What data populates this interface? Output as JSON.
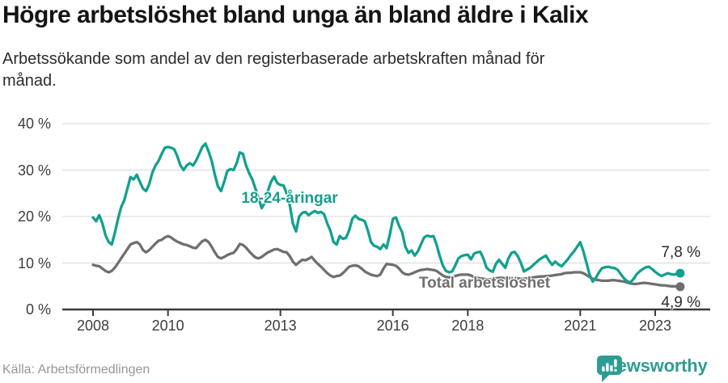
{
  "header": {
    "title": "Högre arbetslöshet bland unga än bland äldre i Kalix",
    "subtitle_lines": [
      "Arbetssökande som andel av den registerbaserade arbetskraften månad för",
      "månad."
    ]
  },
  "chart_data": {
    "type": "line",
    "unit": "%",
    "x_start_year": 2008,
    "x_frequency": "monthly",
    "x_last_point": "2023-09",
    "ylim": [
      0,
      40
    ],
    "ytick_values": [
      0,
      10,
      20,
      30,
      40
    ],
    "ytick_labels": [
      "0 %",
      "10 %",
      "20 %",
      "30 %",
      "40 %"
    ],
    "xticks": [
      2008,
      2010,
      2013,
      2016,
      2018,
      2021,
      2023
    ],
    "grid": "horizontal",
    "legend_position": "inline-labels",
    "series": [
      {
        "name": "18-24-åringar",
        "color": "#12a08e",
        "end_label": "7,8 %",
        "end_value": 7.8,
        "values": [
          19.8,
          19.0,
          20.3,
          18.5,
          16.0,
          14.5,
          14.0,
          16.5,
          19.5,
          22.0,
          23.5,
          26.0,
          28.5,
          28.0,
          29.0,
          27.5,
          26.0,
          25.5,
          27.0,
          29.5,
          31.0,
          32.0,
          33.5,
          34.8,
          35.0,
          34.8,
          34.5,
          33.0,
          31.0,
          30.0,
          31.0,
          31.5,
          31.0,
          32.0,
          33.5,
          35.0,
          35.7,
          34.0,
          32.0,
          29.0,
          26.5,
          25.5,
          27.5,
          29.8,
          30.2,
          30.0,
          31.5,
          33.8,
          33.5,
          31.0,
          29.3,
          28.0,
          26.0,
          24.0,
          21.8,
          23.0,
          25.5,
          27.5,
          28.6,
          27.2,
          26.8,
          26.7,
          25.0,
          22.5,
          18.5,
          16.8,
          20.0,
          20.8,
          21.0,
          20.3,
          20.8,
          21.2,
          20.8,
          21.0,
          20.5,
          18.5,
          17.0,
          14.5,
          14.0,
          15.8,
          15.2,
          15.4,
          17.0,
          19.5,
          20.2,
          19.5,
          19.3,
          19.0,
          17.0,
          14.5,
          13.7,
          13.5,
          13.0,
          14.0,
          13.2,
          16.0,
          19.5,
          19.8,
          18.0,
          16.6,
          13.5,
          12.2,
          12.7,
          11.6,
          12.5,
          14.0,
          15.5,
          15.9,
          15.7,
          15.8,
          14.0,
          11.5,
          9.5,
          8.3,
          8.0,
          8.2,
          9.5,
          11.0,
          11.5,
          11.7,
          11.8,
          10.8,
          12.0,
          12.3,
          12.4,
          11.0,
          9.0,
          8.4,
          8.1,
          9.8,
          10.7,
          9.8,
          9.0,
          11.0,
          12.2,
          12.4,
          11.5,
          10.0,
          8.2,
          8.6,
          9.0,
          9.6,
          10.2,
          10.8,
          11.2,
          11.6,
          10.5,
          9.6,
          10.3,
          9.7,
          9.3,
          10.0,
          10.8,
          11.7,
          12.5,
          13.5,
          14.5,
          12.5,
          10.0,
          7.5,
          6.0,
          6.8,
          8.0,
          8.9,
          9.1,
          9.2,
          9.0,
          8.9,
          8.5,
          7.6,
          6.7,
          6.1,
          5.8,
          6.5,
          7.5,
          8.2,
          8.7,
          9.1,
          9.2,
          8.7,
          8.1,
          7.6,
          7.2,
          7.5,
          7.8,
          7.6,
          7.5,
          7.7,
          7.8
        ]
      },
      {
        "name": "Total arbetslöshet",
        "color": "#6f6f6f",
        "end_label": "4,9 %",
        "end_value": 4.9,
        "values": [
          9.6,
          9.4,
          9.3,
          8.8,
          8.3,
          8.0,
          8.3,
          9.0,
          10.0,
          11.0,
          12.0,
          13.0,
          14.0,
          14.3,
          14.5,
          14.0,
          12.8,
          12.3,
          12.8,
          13.5,
          14.2,
          14.8,
          15.0,
          15.5,
          15.8,
          15.5,
          15.0,
          14.6,
          14.3,
          14.0,
          13.9,
          13.6,
          13.3,
          13.2,
          14.0,
          14.7,
          15.0,
          14.5,
          13.5,
          12.3,
          11.3,
          11.0,
          11.3,
          11.7,
          12.0,
          12.2,
          13.0,
          14.1,
          13.9,
          13.3,
          12.5,
          11.8,
          11.2,
          11.0,
          11.3,
          11.8,
          12.3,
          12.6,
          12.9,
          13.0,
          12.7,
          12.4,
          12.3,
          11.5,
          10.3,
          9.6,
          10.2,
          10.7,
          10.6,
          10.9,
          11.3,
          10.5,
          9.8,
          9.2,
          8.5,
          7.8,
          7.3,
          7.0,
          7.2,
          7.3,
          7.8,
          8.5,
          9.2,
          9.4,
          9.5,
          9.3,
          8.8,
          8.2,
          7.8,
          7.5,
          7.3,
          7.2,
          7.5,
          8.8,
          9.8,
          9.7,
          9.6,
          9.4,
          8.8,
          8.0,
          7.6,
          7.5,
          7.7,
          8.0,
          8.3,
          8.5,
          8.6,
          8.7,
          8.6,
          8.5,
          8.3,
          7.8,
          7.3,
          7.0,
          6.9,
          7.0,
          7.2,
          7.4,
          7.5,
          7.5,
          7.5,
          7.3,
          7.0,
          6.8,
          6.7,
          6.6,
          6.5,
          6.5,
          6.6,
          6.7,
          6.8,
          6.8,
          6.7,
          6.7,
          6.8,
          6.8,
          6.7,
          6.6,
          6.6,
          6.7,
          6.8,
          6.9,
          7.0,
          7.1,
          7.1,
          7.2,
          7.2,
          7.3,
          7.4,
          7.5,
          7.6,
          7.8,
          7.9,
          7.9,
          8.0,
          8.0,
          8.0,
          7.8,
          7.4,
          7.0,
          6.6,
          6.4,
          6.3,
          6.2,
          6.2,
          6.2,
          6.3,
          6.3,
          6.2,
          6.1,
          6.0,
          5.8,
          5.6,
          5.5,
          5.5,
          5.6,
          5.7,
          5.7,
          5.6,
          5.5,
          5.4,
          5.3,
          5.2,
          5.2,
          5.1,
          5.0,
          5.0,
          4.9,
          4.9
        ]
      }
    ]
  },
  "footer": {
    "source": "Källa: Arbetsförmedlingen",
    "logo_text": "Newsworthy"
  },
  "colors": {
    "young_line": "#12a08e",
    "total_line": "#6f6f6f",
    "gridline": "#d9d9d9",
    "axis": "#3a3a3a",
    "logo_teal": "#2f9c92"
  }
}
